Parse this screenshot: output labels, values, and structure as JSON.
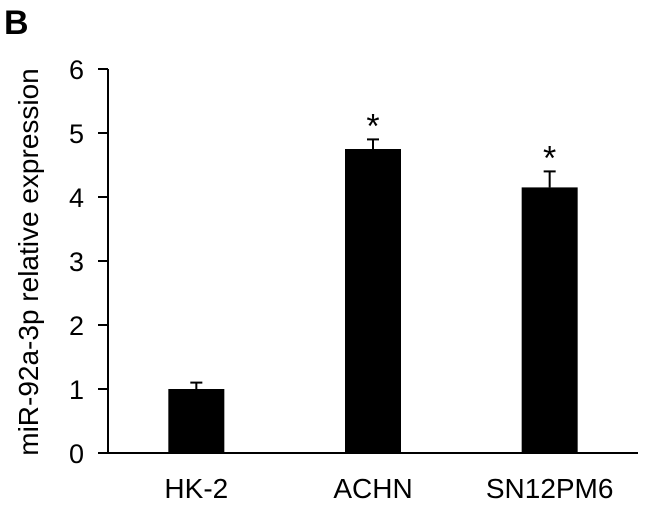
{
  "panel_label": "B",
  "chart_data": {
    "type": "bar",
    "categories": [
      "HK-2",
      "ACHN",
      "SN12PM6"
    ],
    "values": [
      1.0,
      4.75,
      4.15
    ],
    "errors": [
      0.1,
      0.15,
      0.25
    ],
    "annotations": [
      "",
      "*",
      "*"
    ],
    "ylabel": "miR-92a-3p relative expression",
    "xlabel": "",
    "ylim": [
      0,
      6
    ],
    "yticks": [
      0,
      1,
      2,
      3,
      4,
      5,
      6
    ],
    "grid": false,
    "bar_color": "#000000"
  }
}
